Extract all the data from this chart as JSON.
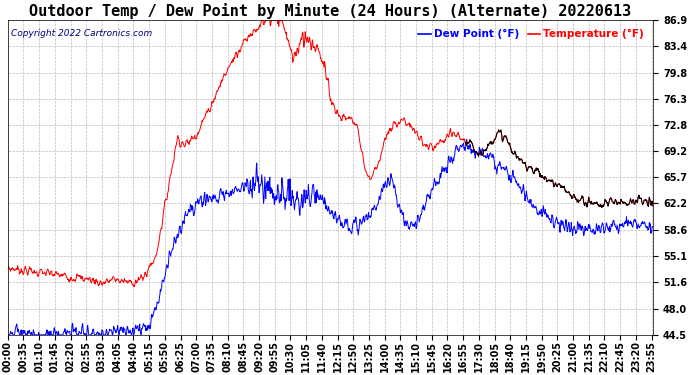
{
  "title": "Outdoor Temp / Dew Point by Minute (24 Hours) (Alternate) 20220613",
  "copyright": "Copyright 2022 Cartronics.com",
  "legend_dew": "Dew Point (°F)",
  "legend_temp": "Temperature (°F)",
  "yticks": [
    44.5,
    48.0,
    51.6,
    55.1,
    58.6,
    62.2,
    65.7,
    69.2,
    72.8,
    76.3,
    79.8,
    83.4,
    86.9
  ],
  "ymin": 44.5,
  "ymax": 86.9,
  "temp_color": "red",
  "dew_color": "blue",
  "black_color": "black",
  "bg_color": "#ffffff",
  "grid_color": "#bbbbbb",
  "title_fontsize": 11,
  "tick_fontsize": 7,
  "n_minutes": 1440,
  "tick_interval_minutes": 35
}
